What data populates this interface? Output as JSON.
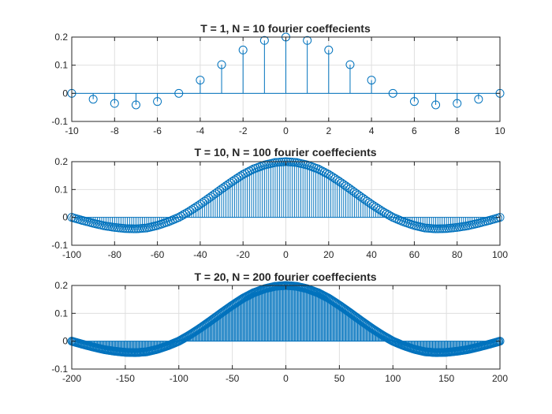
{
  "chart_data": [
    {
      "type": "stem",
      "title": "T = 1, N = 10 fourier coeffecients",
      "xlim": [
        -10,
        10
      ],
      "ylim": [
        -0.1,
        0.2
      ],
      "xticks": [
        -10,
        -8,
        -6,
        -4,
        -2,
        0,
        2,
        4,
        6,
        8,
        10
      ],
      "xtick_labels": [
        "-10",
        "-8",
        "-6",
        "-4",
        "-2",
        "0",
        "2",
        "4",
        "6",
        "8",
        "10"
      ],
      "yticks": [
        -0.1,
        0,
        0.1,
        0.2
      ],
      "ytick_labels": [
        "-0.1",
        "0",
        "0.1",
        "0.2"
      ],
      "grid": true,
      "color": "#0072BD",
      "x": [
        -10,
        -9,
        -8,
        -7,
        -6,
        -5,
        -4,
        -3,
        -2,
        -1,
        0,
        1,
        2,
        3,
        4,
        5,
        6,
        7,
        8,
        9,
        10
      ],
      "values": [
        0,
        -0.021,
        -0.036,
        -0.041,
        -0.029,
        0,
        0.047,
        0.102,
        0.154,
        0.188,
        0.2,
        0.188,
        0.154,
        0.102,
        0.047,
        0,
        -0.029,
        -0.041,
        -0.036,
        -0.021,
        0
      ]
    },
    {
      "type": "stem",
      "title": "T = 10, N = 100 fourier coeffecients",
      "xlim": [
        -100,
        100
      ],
      "ylim": [
        -0.1,
        0.2
      ],
      "xticks": [
        -100,
        -80,
        -60,
        -40,
        -20,
        0,
        20,
        40,
        60,
        80,
        100
      ],
      "xtick_labels": [
        "-100",
        "-80",
        "-60",
        "-40",
        "-20",
        "0",
        "20",
        "40",
        "60",
        "80",
        "100"
      ],
      "yticks": [
        -0.1,
        0,
        0.1,
        0.2
      ],
      "ytick_labels": [
        "-0.1",
        "0",
        "0.1",
        "0.2"
      ],
      "grid": true,
      "color": "#0072BD",
      "x": [
        -100,
        -95,
        -90,
        -85,
        -80,
        -75,
        -70,
        -65,
        -60,
        -55,
        -50,
        -45,
        -40,
        -35,
        -30,
        -25,
        -20,
        -15,
        -10,
        -5,
        0,
        5,
        10,
        15,
        20,
        25,
        30,
        35,
        40,
        45,
        50,
        55,
        60,
        65,
        70,
        75,
        80,
        85,
        90,
        95,
        100
      ],
      "values": [
        0,
        -0.011,
        -0.021,
        -0.03,
        -0.036,
        -0.04,
        -0.041,
        -0.038,
        -0.029,
        -0.016,
        0,
        0.022,
        0.047,
        0.074,
        0.102,
        0.129,
        0.154,
        0.174,
        0.188,
        0.197,
        0.2,
        0.197,
        0.188,
        0.174,
        0.154,
        0.129,
        0.102,
        0.074,
        0.047,
        0.022,
        0,
        -0.016,
        -0.029,
        -0.038,
        -0.041,
        -0.04,
        -0.036,
        -0.03,
        -0.021,
        -0.011,
        0
      ]
    },
    {
      "type": "stem",
      "title": "T = 20, N = 200 fourier coeffecients",
      "xlim": [
        -200,
        200
      ],
      "ylim": [
        -0.1,
        0.2
      ],
      "xticks": [
        -200,
        -150,
        -100,
        -50,
        0,
        50,
        100,
        150,
        200
      ],
      "xtick_labels": [
        "-200",
        "-150",
        "-100",
        "-50",
        "0",
        "50",
        "100",
        "150",
        "200"
      ],
      "yticks": [
        -0.1,
        0,
        0.1,
        0.2
      ],
      "ytick_labels": [
        "-0.1",
        "0",
        "0.1",
        "0.2"
      ],
      "grid": true,
      "color": "#0072BD",
      "x": [
        -200,
        -190,
        -180,
        -170,
        -160,
        -150,
        -140,
        -130,
        -120,
        -110,
        -100,
        -90,
        -80,
        -70,
        -60,
        -50,
        -40,
        -30,
        -20,
        -10,
        0,
        10,
        20,
        30,
        40,
        50,
        60,
        70,
        80,
        90,
        100,
        110,
        120,
        130,
        140,
        150,
        160,
        170,
        180,
        190,
        200
      ],
      "values": [
        0,
        -0.011,
        -0.021,
        -0.03,
        -0.036,
        -0.04,
        -0.041,
        -0.038,
        -0.029,
        -0.016,
        0,
        0.022,
        0.047,
        0.074,
        0.102,
        0.129,
        0.154,
        0.174,
        0.188,
        0.197,
        0.2,
        0.197,
        0.188,
        0.174,
        0.154,
        0.129,
        0.102,
        0.074,
        0.047,
        0.022,
        0,
        -0.016,
        -0.029,
        -0.038,
        -0.041,
        -0.04,
        -0.036,
        -0.03,
        -0.021,
        -0.011,
        0
      ]
    }
  ]
}
